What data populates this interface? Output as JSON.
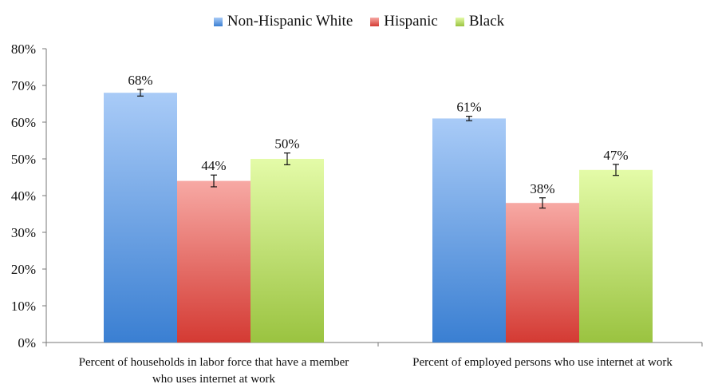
{
  "chart_data": {
    "type": "bar",
    "categories": [
      [
        "Percent of  households in labor force that have a member",
        "who uses internet at work"
      ],
      [
        "Percent of employed persons who use internet at work"
      ]
    ],
    "series": [
      {
        "name": "Non-Hispanic White",
        "values": [
          68,
          61
        ],
        "labels": [
          "68%",
          "61%"
        ],
        "error": [
          0.9,
          0.6
        ],
        "color_top": "#a9cbf7",
        "color_bottom": "#3a7fd2"
      },
      {
        "name": "Hispanic",
        "values": [
          44,
          38
        ],
        "labels": [
          "44%",
          "38%"
        ],
        "error": [
          1.6,
          1.4
        ],
        "color_top": "#f7a9a4",
        "color_bottom": "#d43a33"
      },
      {
        "name": "Black",
        "values": [
          50,
          47
        ],
        "labels": [
          "50%",
          "47%"
        ],
        "error": [
          1.6,
          1.5
        ],
        "color_top": "#e4fba8",
        "color_bottom": "#9ac340"
      }
    ],
    "y_ticks": [
      "0%",
      "10%",
      "20%",
      "30%",
      "40%",
      "50%",
      "60%",
      "70%",
      "80%"
    ],
    "ylim": [
      0,
      80
    ],
    "legend_position": "top",
    "grid": false
  }
}
